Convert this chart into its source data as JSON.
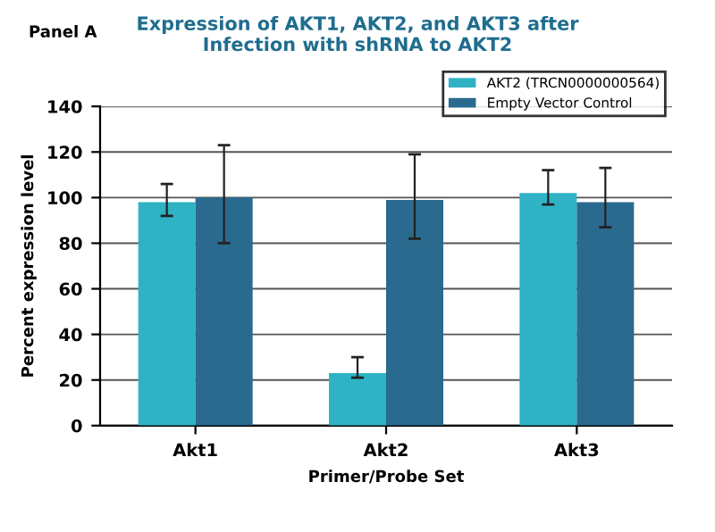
{
  "chart_data": {
    "type": "bar",
    "title": "Expression of AKT1, AKT2, and AKT3 after\nInfection with shRNA to AKT2",
    "xlabel": "Primer/Probe Set",
    "ylabel": "Percent expression level",
    "annotations": [
      "Panel A"
    ],
    "categories": [
      "Akt1",
      "Akt2",
      "Akt3"
    ],
    "series": [
      {
        "name": "AKT2 (TRCN0000000564)",
        "color": "#2fb3c4",
        "values": [
          98,
          23,
          102
        ],
        "errors": [
          [
            92,
            106
          ],
          [
            21,
            30
          ],
          [
            97,
            112
          ]
        ]
      },
      {
        "name": "Empty Vector Control",
        "color": "#2a6a8e",
        "values": [
          100,
          99,
          98
        ],
        "errors": [
          [
            80,
            123
          ],
          [
            82,
            119
          ],
          [
            87,
            113
          ]
        ]
      }
    ],
    "ylim": [
      0,
      140
    ],
    "yticks": [
      0,
      20,
      40,
      60,
      80,
      100,
      120,
      140
    ],
    "grid": "y",
    "legend": "top right"
  }
}
